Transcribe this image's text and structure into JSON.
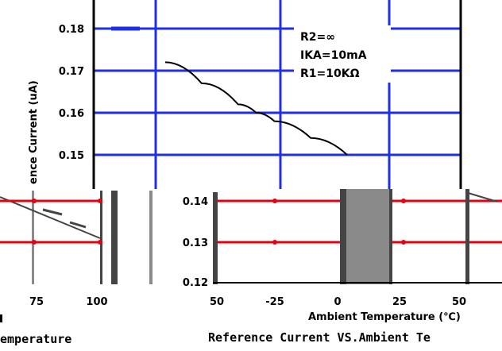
{
  "chart_data": [
    {
      "type": "line",
      "title": "Reference Current VS.Ambient Te",
      "xlabel": "Ambient Temperature (℃)",
      "ylabel": "ence Current (uA)",
      "xlim": [
        -50,
        50
      ],
      "ylim": [
        0.12,
        0.18
      ],
      "x_ticks": [
        "50",
        "-25",
        "0",
        "25",
        "50"
      ],
      "y_ticks": [
        "0.18",
        "0.17",
        "0.16",
        "0.15",
        "0.14",
        "0.13",
        "0.12"
      ],
      "grid": true,
      "annotations": [
        "R2=∞",
        "IKA=10mA",
        "R1=10KΩ"
      ],
      "series": [
        {
          "x": [
            -50,
            -40,
            -30,
            -25,
            -20,
            -10,
            0
          ],
          "y": [
            0.172,
            0.167,
            0.162,
            0.16,
            0.158,
            0.154,
            0.15
          ]
        }
      ]
    },
    {
      "type": "line",
      "title": "emperature",
      "x_ticks": [
        "75",
        "100"
      ],
      "xlim": [
        50,
        100
      ],
      "grid": true,
      "series": []
    }
  ],
  "colors": {
    "grid_blue": "#1f2eea",
    "grid_red": "#e60012",
    "curve": "#000000",
    "dark_block": "#444444",
    "block_gray": "#8a8a8a"
  }
}
